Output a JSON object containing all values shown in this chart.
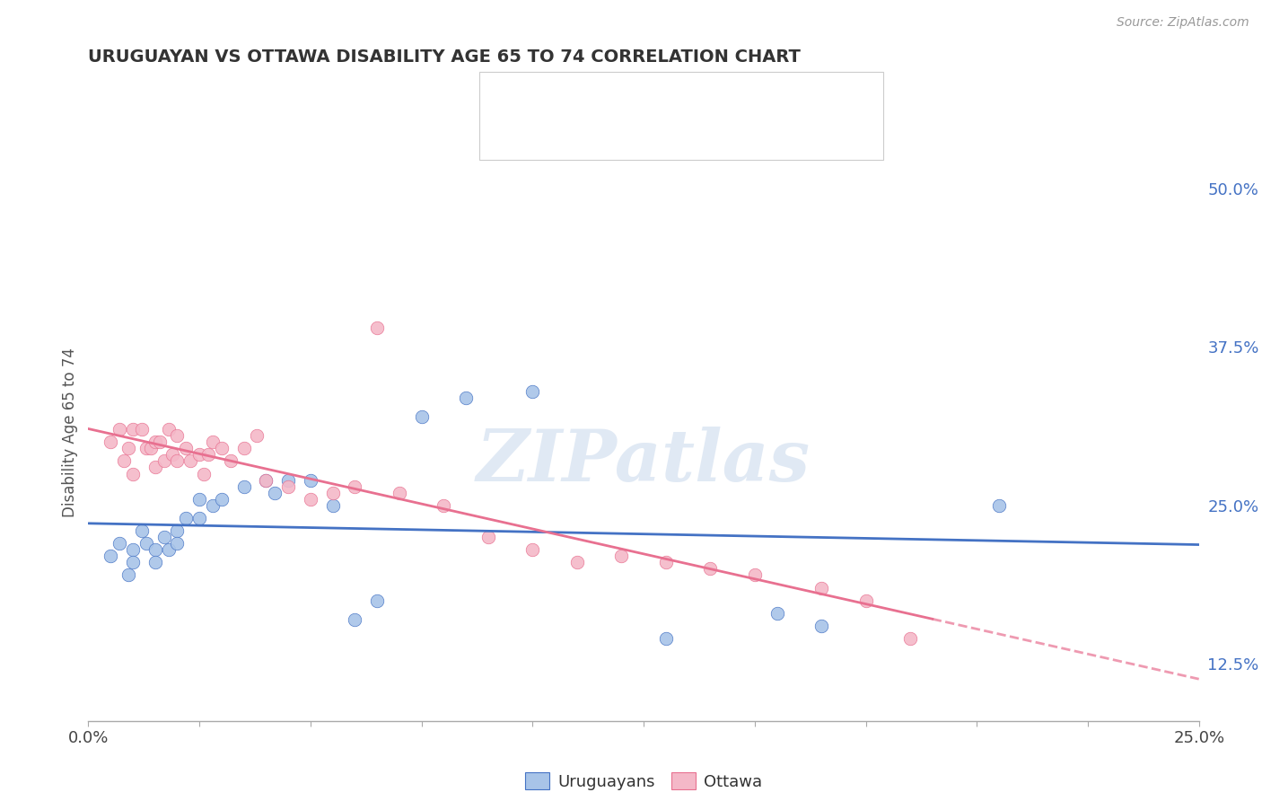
{
  "title": "URUGUAYAN VS OTTAWA DISABILITY AGE 65 TO 74 CORRELATION CHART",
  "source_text": "Source: ZipAtlas.com",
  "ylabel": "Disability Age 65 to 74",
  "xlim": [
    0.0,
    0.25
  ],
  "ylim": [
    0.08,
    0.535
  ],
  "y_ticks_right": [
    0.125,
    0.25,
    0.375,
    0.5
  ],
  "y_tick_labels_right": [
    "12.5%",
    "25.0%",
    "37.5%",
    "50.0%"
  ],
  "blue_color": "#a8c4e8",
  "pink_color": "#f4b8c8",
  "blue_line_color": "#4472C4",
  "pink_line_color": "#e87090",
  "uruguayan_points": [
    [
      0.005,
      0.21
    ],
    [
      0.007,
      0.22
    ],
    [
      0.009,
      0.195
    ],
    [
      0.01,
      0.215
    ],
    [
      0.01,
      0.205
    ],
    [
      0.012,
      0.23
    ],
    [
      0.013,
      0.22
    ],
    [
      0.015,
      0.215
    ],
    [
      0.015,
      0.205
    ],
    [
      0.017,
      0.225
    ],
    [
      0.018,
      0.215
    ],
    [
      0.02,
      0.23
    ],
    [
      0.02,
      0.22
    ],
    [
      0.022,
      0.24
    ],
    [
      0.025,
      0.24
    ],
    [
      0.025,
      0.255
    ],
    [
      0.028,
      0.25
    ],
    [
      0.03,
      0.255
    ],
    [
      0.035,
      0.265
    ],
    [
      0.04,
      0.27
    ],
    [
      0.042,
      0.26
    ],
    [
      0.045,
      0.27
    ],
    [
      0.05,
      0.27
    ],
    [
      0.055,
      0.25
    ],
    [
      0.06,
      0.16
    ],
    [
      0.065,
      0.175
    ],
    [
      0.075,
      0.32
    ],
    [
      0.085,
      0.335
    ],
    [
      0.1,
      0.34
    ],
    [
      0.13,
      0.145
    ],
    [
      0.155,
      0.165
    ],
    [
      0.165,
      0.155
    ],
    [
      0.205,
      0.25
    ]
  ],
  "ottawa_points": [
    [
      0.005,
      0.3
    ],
    [
      0.007,
      0.31
    ],
    [
      0.008,
      0.285
    ],
    [
      0.009,
      0.295
    ],
    [
      0.01,
      0.31
    ],
    [
      0.01,
      0.275
    ],
    [
      0.012,
      0.31
    ],
    [
      0.013,
      0.295
    ],
    [
      0.014,
      0.295
    ],
    [
      0.015,
      0.3
    ],
    [
      0.015,
      0.28
    ],
    [
      0.016,
      0.3
    ],
    [
      0.017,
      0.285
    ],
    [
      0.018,
      0.31
    ],
    [
      0.019,
      0.29
    ],
    [
      0.02,
      0.305
    ],
    [
      0.02,
      0.285
    ],
    [
      0.022,
      0.295
    ],
    [
      0.023,
      0.285
    ],
    [
      0.025,
      0.29
    ],
    [
      0.026,
      0.275
    ],
    [
      0.027,
      0.29
    ],
    [
      0.028,
      0.3
    ],
    [
      0.03,
      0.295
    ],
    [
      0.032,
      0.285
    ],
    [
      0.035,
      0.295
    ],
    [
      0.038,
      0.305
    ],
    [
      0.04,
      0.27
    ],
    [
      0.045,
      0.265
    ],
    [
      0.05,
      0.255
    ],
    [
      0.055,
      0.26
    ],
    [
      0.06,
      0.265
    ],
    [
      0.065,
      0.39
    ],
    [
      0.07,
      0.26
    ],
    [
      0.08,
      0.25
    ],
    [
      0.09,
      0.225
    ],
    [
      0.1,
      0.215
    ],
    [
      0.11,
      0.205
    ],
    [
      0.12,
      0.21
    ],
    [
      0.13,
      0.205
    ],
    [
      0.14,
      0.2
    ],
    [
      0.15,
      0.195
    ],
    [
      0.165,
      0.185
    ],
    [
      0.175,
      0.175
    ],
    [
      0.185,
      0.145
    ]
  ],
  "watermark_text": "ZIPatlas",
  "background_color": "#ffffff",
  "grid_color": "#d8d8d8"
}
